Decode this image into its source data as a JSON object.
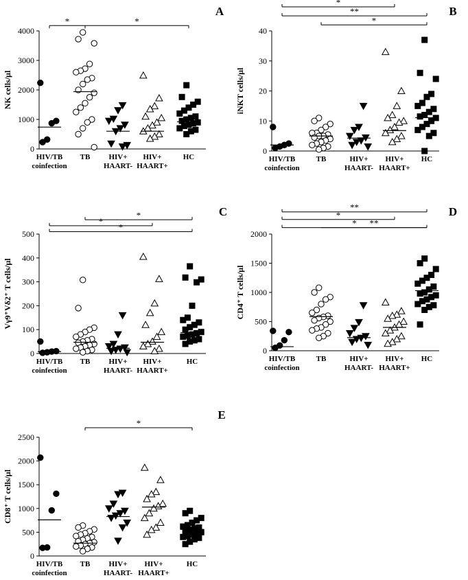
{
  "chart_data": [
    {
      "type": "scatter",
      "panel": "A",
      "ylabel": "NK cells/µl",
      "ylim": [
        0,
        4000
      ],
      "yticks": [
        0,
        1000,
        2000,
        3000,
        4000
      ],
      "categories": [
        {
          "lines": [
            "HIV/TB",
            "coinfection"
          ]
        },
        {
          "lines": [
            "TB"
          ]
        },
        {
          "lines": [
            "HIV+",
            "HAART-"
          ]
        },
        {
          "lines": [
            "HIV+",
            "HAART+"
          ]
        },
        {
          "lines": [
            "HC"
          ]
        }
      ],
      "markers": [
        "filled-circle",
        "open-circle",
        "filled-triangle-down",
        "open-triangle-up",
        "filled-square"
      ],
      "values": [
        [
          2240,
          950,
          870,
          320,
          230
        ],
        [
          3950,
          3720,
          3580,
          2880,
          2720,
          2650,
          2600,
          2400,
          2350,
          2200,
          2000,
          1900,
          1750,
          1550,
          1400,
          1250,
          1000,
          900,
          700,
          500,
          60
        ],
        [
          1480,
          1310,
          1020,
          950,
          820,
          700,
          600,
          180,
          130,
          80
        ],
        [
          2490,
          1720,
          1450,
          1350,
          1100,
          1050,
          900,
          800,
          700,
          600,
          500,
          420,
          350
        ],
        [
          2160,
          1760,
          1600,
          1500,
          1400,
          1300,
          1200,
          1100,
          1050,
          1000,
          950,
          900,
          870,
          820,
          780,
          700,
          650,
          600,
          500
        ]
      ],
      "medians": [
        740,
        1940,
        600,
        600,
        920
      ],
      "significance": [
        {
          "from": 0,
          "to": 1,
          "label": "*",
          "y": 4180,
          "tick": "down"
        },
        {
          "from": 1,
          "to": 4,
          "label": "*",
          "y": 4180,
          "tick": "down"
        }
      ]
    },
    {
      "type": "scatter",
      "panel": "B",
      "ylabel": "iNKT cells/µl",
      "ylim": [
        0,
        40
      ],
      "yticks": [
        0,
        10,
        20,
        30,
        40
      ],
      "categories": [
        {
          "lines": [
            "HIV/TB",
            "coinfection"
          ]
        },
        {
          "lines": [
            "TB"
          ]
        },
        {
          "lines": [
            "HIV+",
            "HAART-"
          ]
        },
        {
          "lines": [
            "HIV+",
            "HAART+"
          ]
        },
        {
          "lines": [
            "HC"
          ]
        }
      ],
      "markers": [
        "filled-circle",
        "open-circle",
        "filled-triangle-down",
        "open-triangle-up",
        "filled-square"
      ],
      "values": [
        [
          8,
          2.5,
          2,
          1.5,
          1
        ],
        [
          11,
          10,
          9,
          8,
          7,
          6,
          6,
          5.5,
          5,
          5,
          4.5,
          4,
          3.5,
          3,
          2.5,
          2,
          1.5,
          1,
          0.5
        ],
        [
          15,
          8,
          7,
          5,
          4.5,
          3.5,
          3,
          2,
          1.5
        ],
        [
          33,
          20,
          15,
          12,
          11,
          10,
          9.5,
          8,
          7,
          6,
          5,
          4,
          3
        ],
        [
          37,
          26,
          24,
          19,
          18,
          16,
          15,
          14,
          13,
          12,
          11.5,
          11,
          10,
          9,
          8,
          7,
          6,
          5,
          0
        ]
      ],
      "medians": [
        2,
        5,
        4.3,
        6.8,
        11.1
      ],
      "significance": [
        {
          "from": 0,
          "to": 3,
          "label": "*",
          "y": 48,
          "tick": "up"
        },
        {
          "from": 0,
          "to": 4,
          "label": "**",
          "y": 45,
          "tick": "up"
        },
        {
          "from": 1,
          "to": 4,
          "label": "*",
          "y": 42,
          "tick": "up"
        }
      ]
    },
    {
      "type": "scatter",
      "panel": "C",
      "ylabel": "Vγ9⁺Vδ2⁺ T cells/µl",
      "ylim": [
        0,
        500
      ],
      "yticks": [
        0,
        100,
        200,
        300,
        400,
        500
      ],
      "categories": [
        {
          "lines": [
            "HIV/TB",
            "coinfection"
          ]
        },
        {
          "lines": [
            "TB"
          ]
        },
        {
          "lines": [
            "HIV+",
            "HAART-"
          ]
        },
        {
          "lines": [
            "HIV+",
            "HAART+"
          ]
        },
        {
          "lines": [
            "HC"
          ]
        }
      ],
      "markers": [
        "filled-circle",
        "open-circle",
        "filled-triangle-down",
        "open-triangle-up",
        "filled-square"
      ],
      "values": [
        [
          50,
          10,
          8,
          5,
          3
        ],
        [
          308,
          190,
          108,
          100,
          90,
          80,
          70,
          60,
          55,
          50,
          45,
          40,
          35,
          30,
          25,
          20,
          15,
          10,
          5
        ],
        [
          160,
          80,
          40,
          30,
          25,
          20,
          15,
          10,
          5
        ],
        [
          405,
          312,
          210,
          170,
          120,
          90,
          70,
          50,
          40,
          30,
          20,
          10
        ],
        [
          365,
          318,
          310,
          298,
          200,
          150,
          140,
          130,
          120,
          110,
          100,
          90,
          85,
          80,
          75,
          70,
          60,
          55,
          50,
          40
        ]
      ],
      "medians": [
        8,
        47,
        22,
        47,
        87
      ],
      "significance": [
        {
          "from": 1,
          "to": 4,
          "label": "*",
          "y": 560,
          "tick": "up"
        },
        {
          "from": 0,
          "to": 3,
          "label": "*",
          "y": 535,
          "tick": "up"
        },
        {
          "from": 0,
          "to": 4,
          "label": "*",
          "y": 510,
          "tick": "up"
        }
      ]
    },
    {
      "type": "scatter",
      "panel": "D",
      "ylabel": "CD4⁺ T cells/µl",
      "ylim": [
        0,
        2000
      ],
      "yticks": [
        0,
        500,
        1000,
        1500,
        2000
      ],
      "categories": [
        {
          "lines": [
            "HIV/TB",
            "coinfection"
          ]
        },
        {
          "lines": [
            "TB"
          ]
        },
        {
          "lines": [
            "HIV+",
            "HAART-"
          ]
        },
        {
          "lines": [
            "HIV+",
            "HAART+"
          ]
        },
        {
          "lines": [
            "HC"
          ]
        }
      ],
      "markers": [
        "filled-circle",
        "open-circle",
        "filled-triangle-down",
        "open-triangle-up",
        "filled-square"
      ],
      "values": [
        [
          340,
          320,
          180,
          90,
          50
        ],
        [
          1080,
          1000,
          920,
          880,
          800,
          700,
          650,
          600,
          580,
          560,
          520,
          500,
          450,
          400,
          380,
          350,
          300,
          250,
          220
        ],
        [
          780,
          490,
          390,
          300,
          250,
          220,
          200,
          150,
          100
        ],
        [
          830,
          680,
          620,
          600,
          550,
          500,
          450,
          400,
          350,
          300,
          250,
          200,
          150,
          120
        ],
        [
          1580,
          1500,
          1400,
          1300,
          1250,
          1200,
          1150,
          1100,
          1050,
          1000,
          980,
          950,
          920,
          880,
          850,
          800,
          780,
          750,
          700,
          450
        ]
      ],
      "medians": [
        70,
        585,
        225,
        400,
        1030
      ],
      "significance": [
        {
          "from": 0,
          "to": 4,
          "label": "**",
          "y": 2380,
          "tick": "up"
        },
        {
          "from": 0,
          "to": 3,
          "label": "*",
          "y": 2250,
          "tick": "up"
        },
        {
          "from": 0,
          "to": 4,
          "label": "*",
          "y": 2110,
          "tick": "up"
        },
        {
          "from": 1,
          "to": 4,
          "label": "**",
          "y": 2110,
          "tick": "none"
        }
      ]
    },
    {
      "type": "scatter",
      "panel": "E",
      "ylabel": "CD8⁺ T cells/µl",
      "ylim": [
        0,
        2500
      ],
      "yticks": [
        0,
        500,
        1000,
        1500,
        2000,
        2500
      ],
      "categories": [
        {
          "lines": [
            "HIV/TB",
            "coinfection"
          ]
        },
        {
          "lines": [
            "TB"
          ]
        },
        {
          "lines": [
            "HIV+",
            "HAART-"
          ]
        },
        {
          "lines": [
            "HIV+",
            "HAART+"
          ]
        },
        {
          "lines": [
            "HC"
          ]
        }
      ],
      "markers": [
        "filled-circle",
        "open-circle",
        "filled-triangle-down",
        "open-triangle-up",
        "filled-square"
      ],
      "values": [
        [
          2070,
          1310,
          960,
          180,
          170
        ],
        [
          640,
          600,
          560,
          520,
          480,
          450,
          420,
          400,
          370,
          340,
          310,
          290,
          270,
          250,
          220,
          200,
          180,
          150,
          100
        ],
        [
          1330,
          1300,
          1100,
          1000,
          950,
          900,
          850,
          800,
          700,
          600,
          320
        ],
        [
          1860,
          1600,
          1350,
          1300,
          1200,
          1100,
          1050,
          1000,
          900,
          800,
          700,
          600,
          550,
          450
        ],
        [
          950,
          900,
          800,
          750,
          700,
          650,
          620,
          600,
          580,
          550,
          520,
          500,
          480,
          450,
          420,
          400,
          380,
          350,
          300,
          250
        ]
      ],
      "medians": [
        760,
        270,
        830,
        1030,
        560
      ],
      "significance": [
        {
          "from": 1,
          "to": 4,
          "label": "*",
          "y": 2700,
          "tick": "down"
        }
      ]
    }
  ]
}
